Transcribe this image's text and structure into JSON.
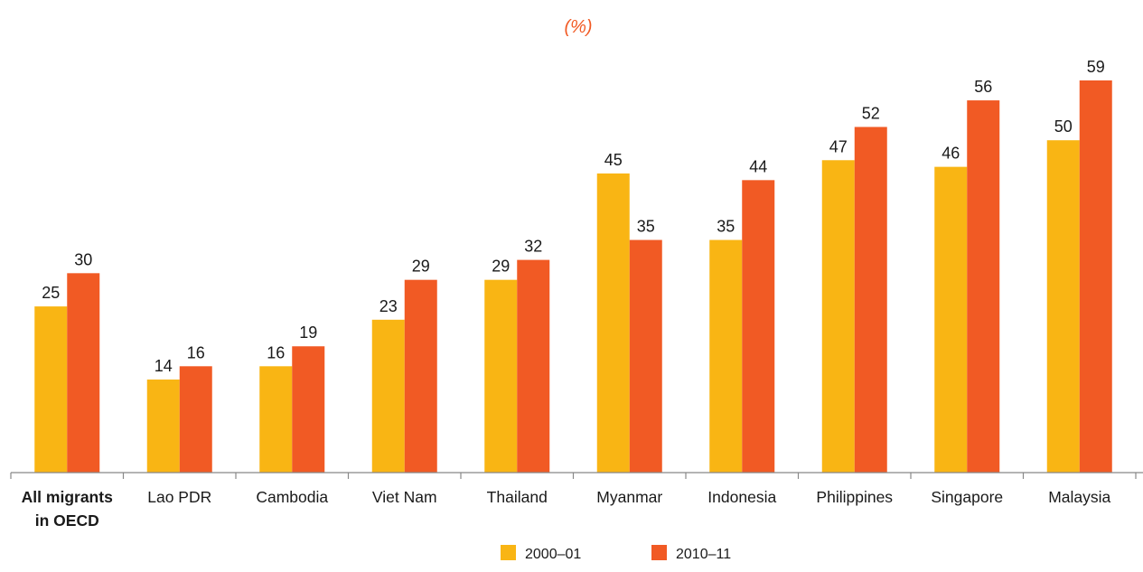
{
  "chart_data": {
    "type": "bar",
    "title": "(%)",
    "xlabel": "",
    "ylabel": "",
    "ylim": [
      0,
      59
    ],
    "grid": false,
    "legend_position": "bottom",
    "categories": [
      [
        "All migrants",
        "in OECD"
      ],
      [
        "Lao PDR"
      ],
      [
        "Cambodia"
      ],
      [
        "Viet Nam"
      ],
      [
        "Thailand"
      ],
      [
        "Myanmar"
      ],
      [
        "Indonesia"
      ],
      [
        "Philippines"
      ],
      [
        "Singapore"
      ],
      [
        "Malaysia"
      ]
    ],
    "series": [
      {
        "name": "2000–01",
        "color": "#F9B514",
        "values": [
          25,
          14,
          16,
          23,
          29,
          45,
          35,
          47,
          46,
          50
        ]
      },
      {
        "name": "2010–11",
        "color": "#F15A24",
        "values": [
          30,
          16,
          19,
          29,
          32,
          35,
          44,
          52,
          56,
          59
        ]
      }
    ],
    "unit_color": "#F15A24",
    "axis_color": "#888888"
  }
}
